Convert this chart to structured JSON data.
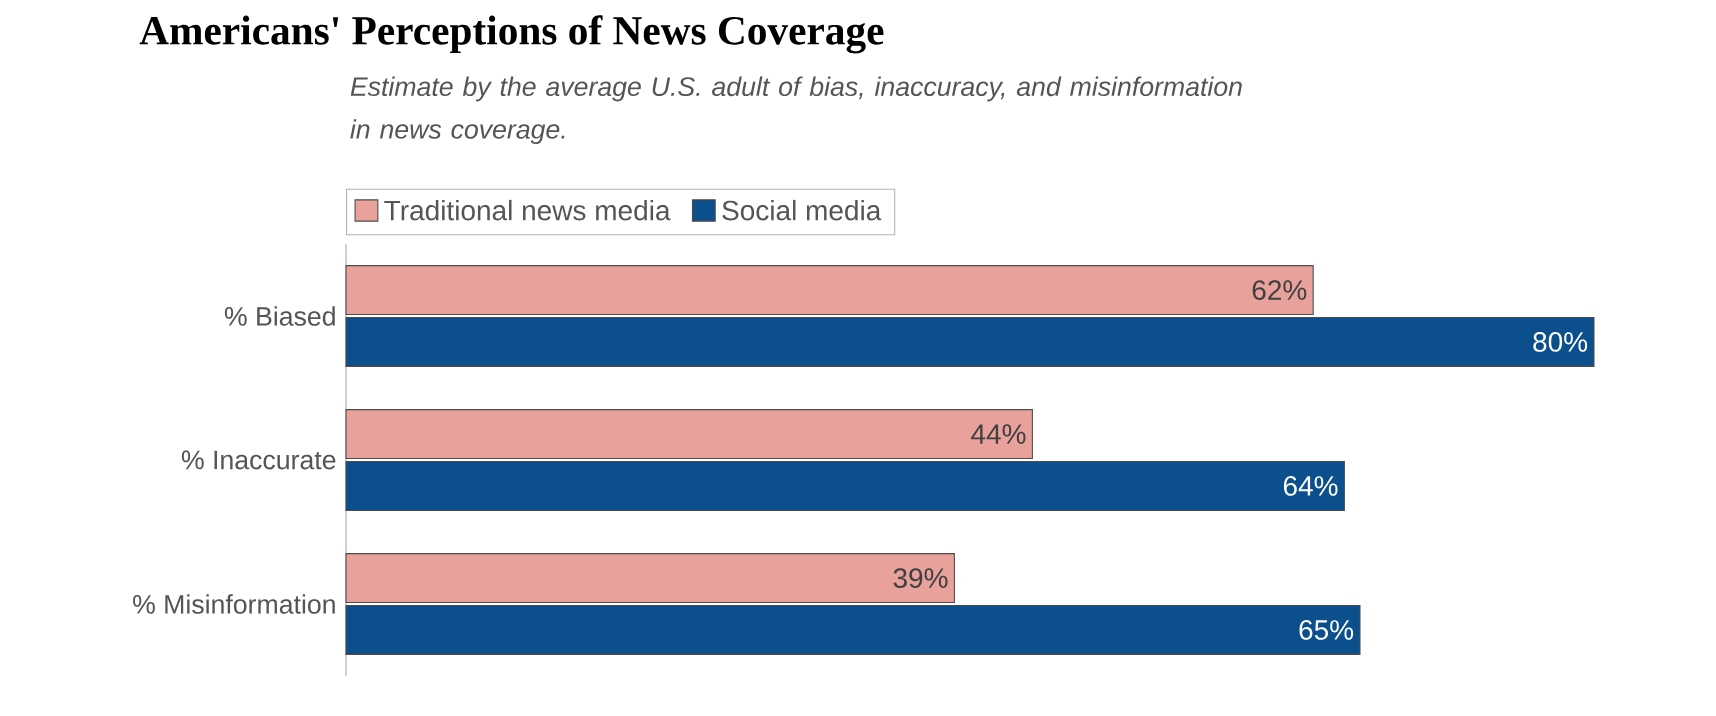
{
  "chart_data": {
    "type": "bar",
    "orientation": "horizontal",
    "title": "Americans' Perceptions of News Coverage",
    "subtitle": "Estimate by the average U.S. adult of bias, inaccuracy, and misinformation in news coverage.",
    "categories": [
      "% Biased",
      "% Inaccurate",
      "% Misinformation"
    ],
    "series": [
      {
        "name": "Traditional news media",
        "color": "#e9a19b",
        "values": [
          62,
          44,
          39
        ],
        "value_labels": [
          "62%",
          "44%",
          "39%"
        ]
      },
      {
        "name": "Social media",
        "color": "#0b4f8c",
        "values": [
          80,
          64,
          65
        ],
        "value_labels": [
          "80%",
          "64%",
          "65%"
        ]
      }
    ],
    "legend": "top left"
  }
}
